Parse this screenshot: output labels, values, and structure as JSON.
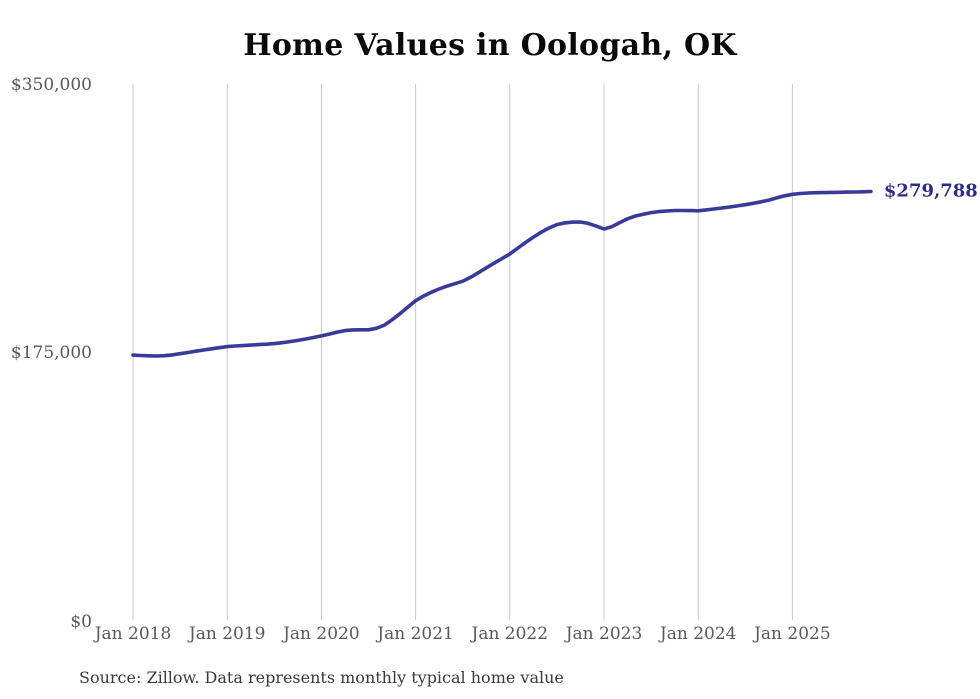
{
  "title": "Home Values in Oologah, OK",
  "source_note": "Source: Zillow. Data represents monthly typical home value",
  "end_label": "$279,788",
  "colors": {
    "line": "#3a3a9b",
    "end_label": "#2c2c8c",
    "title_text": "#0a0a0a",
    "axis_text": "#595959",
    "source_text": "#3a3a3a",
    "gridline": "#c9c9c9",
    "background": "#ffffff"
  },
  "chart_data": {
    "type": "line",
    "title": "Home Values in Oologah, OK",
    "xlabel": "",
    "ylabel": "",
    "ylim": [
      0,
      350000
    ],
    "y_tick_labels": [
      "$0",
      "$175,000",
      "$350,000"
    ],
    "y_tick_values": [
      0,
      175000,
      350000
    ],
    "x_tick_labels": [
      "Jan 2018",
      "Jan 2019",
      "Jan 2020",
      "Jan 2021",
      "Jan 2022",
      "Jan 2023",
      "Jan 2024",
      "Jan 2025"
    ],
    "grid": "vertical-gridlines-only",
    "legend": "none",
    "interval": "monthly",
    "x_start": "Jan 2018",
    "x_end": "Nov 2025",
    "last_value": 279788,
    "series": [
      {
        "name": "Typical home value (USD)",
        "values": [
          173000,
          172700,
          172500,
          172400,
          172600,
          173100,
          173900,
          174700,
          175500,
          176300,
          177100,
          177800,
          178500,
          178900,
          179200,
          179500,
          179800,
          180100,
          180500,
          181100,
          181800,
          182600,
          183500,
          184500,
          185500,
          186700,
          188000,
          189000,
          189400,
          189500,
          189500,
          190500,
          192500,
          196000,
          200000,
          204300,
          208500,
          211500,
          214000,
          216200,
          218000,
          219600,
          221200,
          223800,
          226800,
          230000,
          233000,
          236000,
          239000,
          242800,
          246500,
          250000,
          253200,
          256000,
          258200,
          259300,
          259800,
          259900,
          259000,
          257200,
          255300,
          256800,
          259500,
          262000,
          263800,
          265000,
          266000,
          266700,
          267100,
          267400,
          267400,
          267300,
          267200,
          267800,
          268400,
          269000,
          269700,
          270400,
          271200,
          272100,
          273100,
          274200,
          275600,
          277000,
          278000,
          278500,
          278800,
          279000,
          279100,
          279200,
          279300,
          279400,
          279500,
          279600,
          279788
        ]
      }
    ]
  }
}
